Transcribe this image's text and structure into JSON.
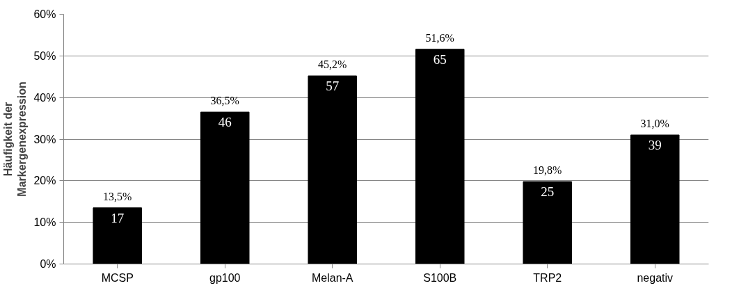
{
  "chart_data": {
    "type": "bar",
    "ylabel": "Häufigkeit der\nMarkergenexpression",
    "categories": [
      "MCSP",
      "gp100",
      "Melan-A",
      "S100B",
      "TRP2",
      "negativ"
    ],
    "values": [
      13.5,
      36.5,
      45.2,
      51.6,
      19.8,
      31.0
    ],
    "color": "#000000",
    "value_labels": [
      "13,5%",
      "36,5%",
      "45,2%",
      "51,6%",
      "19,8%",
      "31,0%"
    ],
    "ylim": [
      0,
      60
    ],
    "yticks": [
      {
        "value": 0,
        "label": "0%"
      },
      {
        "value": 10,
        "label": "10%"
      },
      {
        "value": 20,
        "label": "20%"
      },
      {
        "value": 30,
        "label": "30%"
      },
      {
        "value": 40,
        "label": "40%"
      },
      {
        "value": 50,
        "label": "50%"
      },
      {
        "value": 60,
        "label": "60%"
      }
    ],
    "grid": "y",
    "annotations": [
      {
        "text": "17",
        "x": "MCSP",
        "y": 13.5
      },
      {
        "text": "46",
        "x": "gp100",
        "y": 36.5
      },
      {
        "text": "57",
        "x": "Melan-A",
        "y": 45.2
      },
      {
        "text": "65",
        "x": "S100B",
        "y": 51.6
      },
      {
        "text": "25",
        "x": "TRP2",
        "y": 19.8
      },
      {
        "text": "39",
        "x": "negativ",
        "y": 31.0
      }
    ]
  }
}
